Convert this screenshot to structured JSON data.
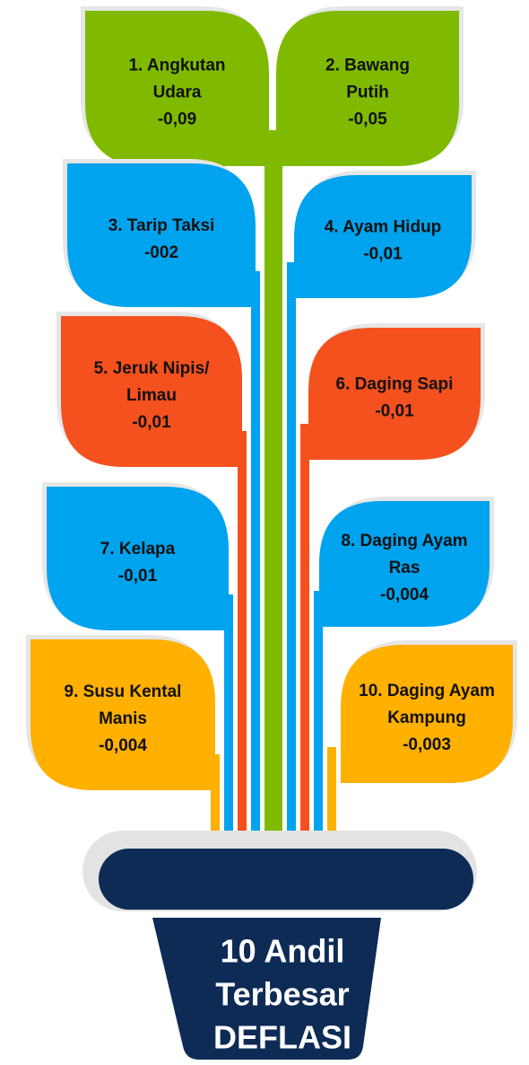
{
  "title": [
    "10 Andil",
    "Terbesar",
    "DEFLASI"
  ],
  "leaves": [
    {
      "lines": [
        "1. Angkutan",
        "Udara"
      ],
      "value": "-0,09",
      "color": "#7fba00"
    },
    {
      "lines": [
        "2. Bawang",
        "Putih"
      ],
      "value": "-0,05",
      "color": "#7fba00"
    },
    {
      "lines": [
        "3. Tarip Taksi"
      ],
      "value": "-002",
      "color": "#00a3ee"
    },
    {
      "lines": [
        "4. Ayam Hidup"
      ],
      "value": "-0,01",
      "color": "#00a3ee"
    },
    {
      "lines": [
        "5. Jeruk Nipis/",
        "Limau"
      ],
      "value": "-0,01",
      "color": "#f4511e"
    },
    {
      "lines": [
        "6. Daging Sapi"
      ],
      "value": "-0,01",
      "color": "#f4511e"
    },
    {
      "lines": [
        "7. Kelapa"
      ],
      "value": "-0,01",
      "color": "#00a3ee"
    },
    {
      "lines": [
        "8. Daging Ayam",
        "Ras"
      ],
      "value": "-0,004",
      "color": "#00a3ee"
    },
    {
      "lines": [
        "9. Susu Kental",
        "Manis"
      ],
      "value": "-0,004",
      "color": "#ffb000"
    },
    {
      "lines": [
        "10. Daging Ayam",
        "Kampung"
      ],
      "value": "-0,003",
      "color": "#ffb000"
    }
  ]
}
